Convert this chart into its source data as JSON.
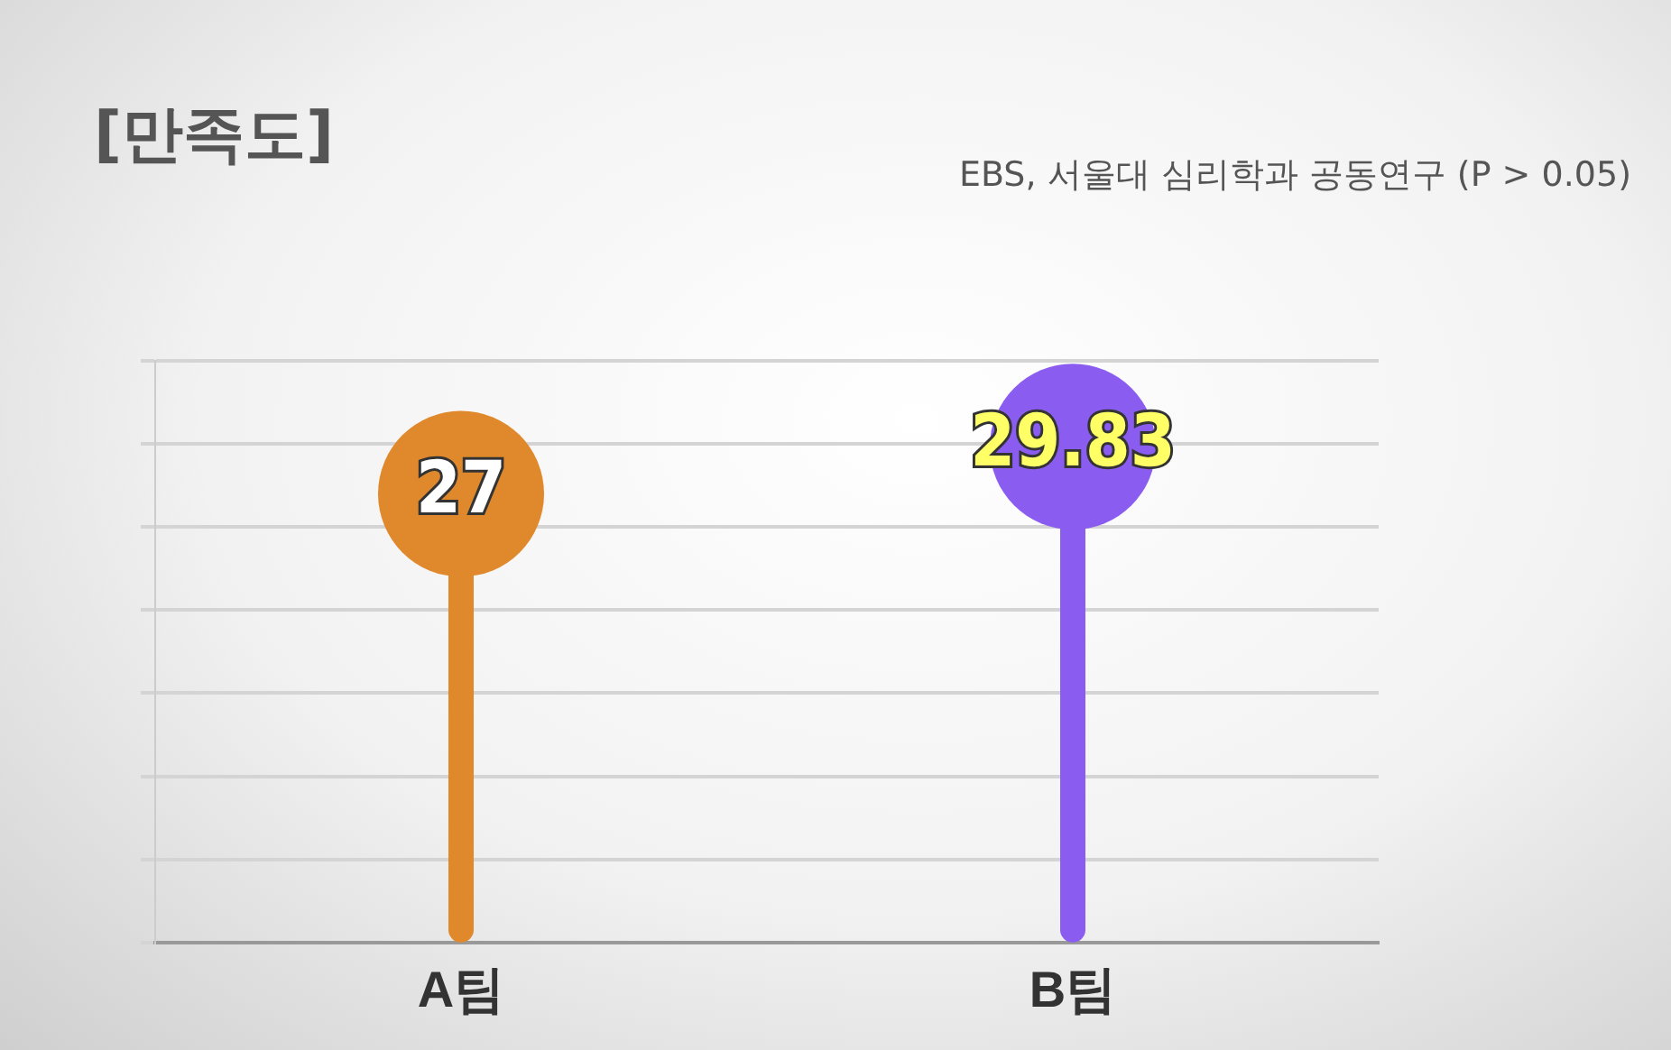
{
  "chart_data": {
    "type": "lollipop",
    "title": "[만족도]",
    "annotations": [
      "EBS, 서울대 심리학과 공동연구 (P > 0.05)"
    ],
    "categories": [
      "A팀",
      "B팀"
    ],
    "values": [
      27,
      29.83
    ],
    "colors": [
      "#e0892c",
      "#8b5cf0"
    ],
    "data_labels": true,
    "grid": "y",
    "ylim": [
      0,
      35
    ],
    "yticks": [
      {
        "value": 0,
        "label": null
      },
      {
        "value": 5,
        "label": null
      },
      {
        "value": 10,
        "label": null
      },
      {
        "value": 15,
        "label": null
      },
      {
        "value": 20,
        "label": null
      },
      {
        "value": 25,
        "label": null
      },
      {
        "value": 30,
        "label": null
      },
      {
        "value": 35,
        "label": null
      }
    ]
  }
}
